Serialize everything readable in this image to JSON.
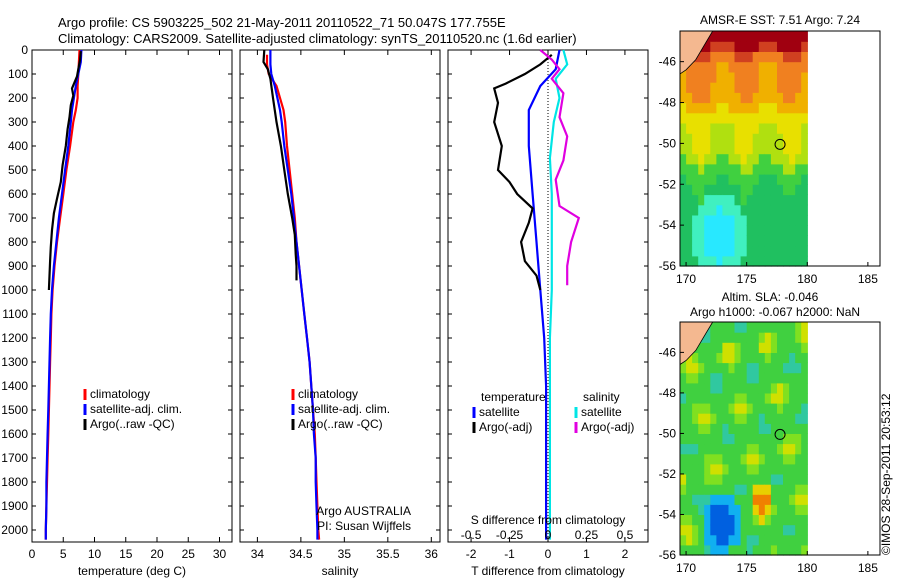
{
  "header": {
    "line1": "Argo profile: CS 5903225_502 21-May-2011 20110522_71 50.047S 177.755E",
    "line2": "Climatology: CARS2009. Satellite-adjusted climatology: synTS_20110520.nc (1.6d earlier)"
  },
  "footer": {
    "stamp": "©IMOS 28-Sep-2011 20:53:12"
  },
  "colors": {
    "climatology": "#ff0000",
    "satellite": "#0000ff",
    "argo": "#000000",
    "satellite_salinity": "#00e5e5",
    "argo_salinity": "#e000e0",
    "land": "#f4b890"
  },
  "chart_data": [
    {
      "type": "line",
      "xlabel": "temperature (deg C)",
      "ylabel": "",
      "xlim": [
        0,
        32
      ],
      "ylim": [
        2050,
        0
      ],
      "xticks": [
        "0",
        "5",
        "10",
        "15",
        "20",
        "25",
        "30"
      ],
      "xtick_values": [
        0,
        5,
        10,
        15,
        20,
        25,
        30
      ],
      "yticks": [
        "0",
        "100",
        "200",
        "300",
        "400",
        "500",
        "600",
        "700",
        "800",
        "900",
        "1000",
        "1100",
        "1200",
        "1300",
        "1400",
        "1500",
        "1600",
        "1700",
        "1800",
        "1900",
        "2000"
      ],
      "ytick_values": [
        0,
        100,
        200,
        300,
        400,
        500,
        600,
        700,
        800,
        900,
        1000,
        1100,
        1200,
        1300,
        1400,
        1500,
        1600,
        1700,
        1800,
        1900,
        2000
      ],
      "legend": [
        "climatology",
        "satellite-adj. clim.",
        "Argo(..raw -QC)"
      ],
      "legend_position": "lower-center",
      "series": [
        {
          "name": "climatology",
          "color": "#ff0000",
          "points": [
            [
              7.6,
              0
            ],
            [
              7.5,
              50
            ],
            [
              7.4,
              100
            ],
            [
              7.3,
              150
            ],
            [
              7.3,
              200
            ],
            [
              7.0,
              250
            ],
            [
              6.6,
              300
            ],
            [
              6.1,
              400
            ],
            [
              5.5,
              500
            ],
            [
              5.0,
              600
            ],
            [
              4.5,
              700
            ],
            [
              4.0,
              800
            ],
            [
              3.6,
              900
            ],
            [
              3.3,
              1000
            ],
            [
              3.1,
              1100
            ],
            [
              3.0,
              1200
            ],
            [
              2.9,
              1300
            ],
            [
              2.8,
              1400
            ],
            [
              2.7,
              1500
            ],
            [
              2.6,
              1600
            ],
            [
              2.5,
              1700
            ],
            [
              2.4,
              1800
            ],
            [
              2.3,
              1900
            ],
            [
              2.2,
              2000
            ],
            [
              2.2,
              2040
            ]
          ]
        },
        {
          "name": "satellite-adj. clim.",
          "color": "#0000ff",
          "points": [
            [
              7.9,
              0
            ],
            [
              7.8,
              50
            ],
            [
              7.4,
              100
            ],
            [
              7.0,
              150
            ],
            [
              6.7,
              200
            ],
            [
              6.4,
              250
            ],
            [
              6.2,
              300
            ],
            [
              5.8,
              400
            ],
            [
              5.3,
              500
            ],
            [
              4.8,
              600
            ],
            [
              4.3,
              700
            ],
            [
              3.9,
              800
            ],
            [
              3.5,
              900
            ],
            [
              3.2,
              1000
            ],
            [
              3.0,
              1100
            ],
            [
              2.9,
              1200
            ],
            [
              2.8,
              1300
            ],
            [
              2.7,
              1400
            ],
            [
              2.6,
              1500
            ],
            [
              2.5,
              1600
            ],
            [
              2.4,
              1700
            ],
            [
              2.3,
              1800
            ],
            [
              2.3,
              1900
            ],
            [
              2.2,
              2000
            ],
            [
              2.2,
              2040
            ]
          ]
        },
        {
          "name": "Argo(..raw -QC)",
          "color": "#000000",
          "points": [
            [
              7.8,
              5
            ],
            [
              7.7,
              40
            ],
            [
              7.4,
              80
            ],
            [
              7.2,
              110
            ],
            [
              6.4,
              160
            ],
            [
              6.6,
              190
            ],
            [
              6.2,
              230
            ],
            [
              6.0,
              280
            ],
            [
              5.7,
              330
            ],
            [
              5.4,
              400
            ],
            [
              4.9,
              480
            ],
            [
              4.6,
              550
            ],
            [
              4.0,
              620
            ],
            [
              3.5,
              680
            ],
            [
              3.2,
              750
            ],
            [
              3.0,
              820
            ],
            [
              2.9,
              880
            ],
            [
              2.8,
              940
            ],
            [
              2.7,
              1000
            ]
          ]
        }
      ]
    },
    {
      "type": "line",
      "xlabel": "salinity",
      "ylabel": "",
      "xlim": [
        33.8,
        36.1
      ],
      "ylim": [
        2050,
        0
      ],
      "xticks": [
        "34",
        "34.5",
        "35",
        "35.5",
        "36"
      ],
      "xtick_values": [
        34,
        34.5,
        35,
        35.5,
        36
      ],
      "legend": [
        "climatology",
        "satellite-adj. clim.",
        "Argo(..raw -QC)"
      ],
      "legend_position": "lower-center",
      "annotation": [
        "Argo AUSTRALIA",
        "PI: Susan Wijffels"
      ],
      "series": [
        {
          "name": "climatology",
          "color": "#ff0000",
          "points": [
            [
              34.11,
              20
            ],
            [
              34.11,
              60
            ],
            [
              34.13,
              100
            ],
            [
              34.22,
              150
            ],
            [
              34.3,
              250
            ],
            [
              34.32,
              300
            ],
            [
              34.34,
              400
            ],
            [
              34.37,
              500
            ],
            [
              34.4,
              600
            ],
            [
              34.43,
              700
            ],
            [
              34.45,
              800
            ],
            [
              34.48,
              900
            ],
            [
              34.51,
              1000
            ],
            [
              34.54,
              1100
            ],
            [
              34.57,
              1200
            ],
            [
              34.6,
              1300
            ],
            [
              34.62,
              1400
            ],
            [
              34.64,
              1500
            ],
            [
              34.66,
              1600
            ],
            [
              34.67,
              1700
            ],
            [
              34.68,
              1800
            ],
            [
              34.69,
              1900
            ],
            [
              34.7,
              2000
            ],
            [
              34.71,
              2040
            ]
          ]
        },
        {
          "name": "satellite-adj. clim.",
          "color": "#0000ff",
          "points": [
            [
              34.15,
              0
            ],
            [
              34.15,
              60
            ],
            [
              34.16,
              100
            ],
            [
              34.2,
              150
            ],
            [
              34.23,
              200
            ],
            [
              34.26,
              250
            ],
            [
              34.28,
              300
            ],
            [
              34.31,
              400
            ],
            [
              34.35,
              500
            ],
            [
              34.39,
              600
            ],
            [
              34.42,
              700
            ],
            [
              34.45,
              800
            ],
            [
              34.48,
              900
            ],
            [
              34.51,
              1000
            ],
            [
              34.54,
              1100
            ],
            [
              34.57,
              1200
            ],
            [
              34.6,
              1300
            ],
            [
              34.62,
              1400
            ],
            [
              34.64,
              1500
            ],
            [
              34.65,
              1600
            ],
            [
              34.67,
              1700
            ],
            [
              34.67,
              1800
            ],
            [
              34.68,
              1900
            ],
            [
              34.69,
              2000
            ],
            [
              34.69,
              2040
            ]
          ]
        },
        {
          "name": "Argo(..raw -QC)",
          "color": "#000000",
          "points": [
            [
              34.08,
              0
            ],
            [
              34.07,
              50
            ],
            [
              34.12,
              80
            ],
            [
              34.15,
              120
            ],
            [
              34.18,
              200
            ],
            [
              34.22,
              300
            ],
            [
              34.27,
              400
            ],
            [
              34.31,
              500
            ],
            [
              34.35,
              600
            ],
            [
              34.4,
              700
            ],
            [
              34.43,
              770
            ],
            [
              34.44,
              850
            ],
            [
              34.45,
              900
            ],
            [
              34.45,
              960
            ]
          ]
        }
      ]
    },
    {
      "type": "line",
      "xlabel": "T difference from climatology",
      "xlabel2": "S difference from climatology",
      "xlim": [
        -2.6,
        2.6
      ],
      "ylim": [
        2050,
        0
      ],
      "xticks": [
        "-2",
        "-1",
        "0",
        "1",
        "2"
      ],
      "xtick_values": [
        -2,
        -1,
        0,
        1,
        2
      ],
      "xticks2": [
        "-0.5",
        "-0.25",
        "0",
        "0.25",
        "0.5"
      ],
      "xtick2_values": [
        -0.5,
        -0.25,
        0,
        0.25,
        0.5
      ],
      "legend_groups": [
        {
          "title": "temperature",
          "entries": [
            "satellite",
            "Argo(-adj)"
          ]
        },
        {
          "title": "salinity",
          "entries": [
            "satellite",
            "Argo(-adj)"
          ]
        }
      ],
      "series": [
        {
          "name": "temperature satellite",
          "color": "#0000ff",
          "points": [
            [
              0.3,
              0
            ],
            [
              0.2,
              80
            ],
            [
              -0.2,
              150
            ],
            [
              -0.5,
              250
            ],
            [
              -0.5,
              400
            ],
            [
              -0.4,
              600
            ],
            [
              -0.3,
              800
            ],
            [
              -0.2,
              1000
            ],
            [
              -0.1,
              1200
            ],
            [
              -0.05,
              1400
            ],
            [
              -0.05,
              1600
            ],
            [
              -0.05,
              1800
            ],
            [
              -0.05,
              2000
            ],
            [
              -0.05,
              2040
            ]
          ]
        },
        {
          "name": "temperature Argo(-adj)",
          "color": "#000000",
          "points": [
            [
              0.1,
              20
            ],
            [
              -0.2,
              60
            ],
            [
              -0.6,
              100
            ],
            [
              -1.1,
              140
            ],
            [
              -1.4,
              160
            ],
            [
              -1.3,
              220
            ],
            [
              -1.4,
              300
            ],
            [
              -1.2,
              400
            ],
            [
              -1.3,
              500
            ],
            [
              -1.0,
              550
            ],
            [
              -0.8,
              600
            ],
            [
              -0.4,
              660
            ],
            [
              -0.5,
              720
            ],
            [
              -0.7,
              800
            ],
            [
              -0.6,
              880
            ],
            [
              -0.3,
              940
            ],
            [
              -0.2,
              1000
            ]
          ]
        },
        {
          "name": "salinity satellite",
          "color": "#00e5e5",
          "points": [
            [
              0.4,
              0
            ],
            [
              0.5,
              60
            ],
            [
              0.2,
              120
            ],
            [
              0.3,
              200
            ],
            [
              0.15,
              300
            ],
            [
              0.05,
              450
            ],
            [
              0.1,
              600
            ],
            [
              0.1,
              800
            ],
            [
              0.1,
              1000
            ],
            [
              0.05,
              1200
            ],
            [
              0.05,
              1400
            ],
            [
              0.05,
              1600
            ],
            [
              0.05,
              1800
            ],
            [
              0.05,
              2000
            ],
            [
              0.05,
              2040
            ]
          ]
        },
        {
          "name": "salinity Argo(-adj)",
          "color": "#e000e0",
          "points": [
            [
              -0.2,
              0
            ],
            [
              0.1,
              40
            ],
            [
              0.3,
              80
            ],
            [
              0.1,
              120
            ],
            [
              0.4,
              180
            ],
            [
              0.3,
              280
            ],
            [
              0.5,
              360
            ],
            [
              0.4,
              460
            ],
            [
              0.2,
              540
            ],
            [
              0.3,
              650
            ],
            [
              0.8,
              700
            ],
            [
              0.6,
              800
            ],
            [
              0.5,
              900
            ],
            [
              0.5,
              980
            ]
          ]
        }
      ]
    },
    {
      "type": "heatmap",
      "title": "AMSR-E SST: 7.51  Argo: 7.24",
      "xlim": [
        169.5,
        186
      ],
      "ylim": [
        -56,
        -44.5
      ],
      "xticks": [
        "170",
        "175",
        "180",
        "185"
      ],
      "xtick_values": [
        170,
        175,
        180,
        185
      ],
      "yticks": [
        "-46",
        "-48",
        "-50",
        "-52",
        "-54",
        "-56"
      ],
      "ytick_values": [
        -46,
        -48,
        -50,
        -52,
        -54,
        -56
      ],
      "marker": {
        "lon": 177.755,
        "lat": -50.047
      }
    },
    {
      "type": "heatmap",
      "title": "Altim. SLA: -0.046",
      "title2": "Argo h1000: -0.067 h2000: NaN",
      "xlim": [
        169.5,
        186
      ],
      "ylim": [
        -56,
        -44.5
      ],
      "xticks": [
        "170",
        "175",
        "180",
        "185"
      ],
      "xtick_values": [
        170,
        175,
        180,
        185
      ],
      "yticks": [
        "-46",
        "-48",
        "-50",
        "-52",
        "-54",
        "-56"
      ],
      "ytick_values": [
        -46,
        -48,
        -50,
        -52,
        -54,
        -56
      ],
      "marker": {
        "lon": 177.755,
        "lat": -50.047
      }
    }
  ]
}
